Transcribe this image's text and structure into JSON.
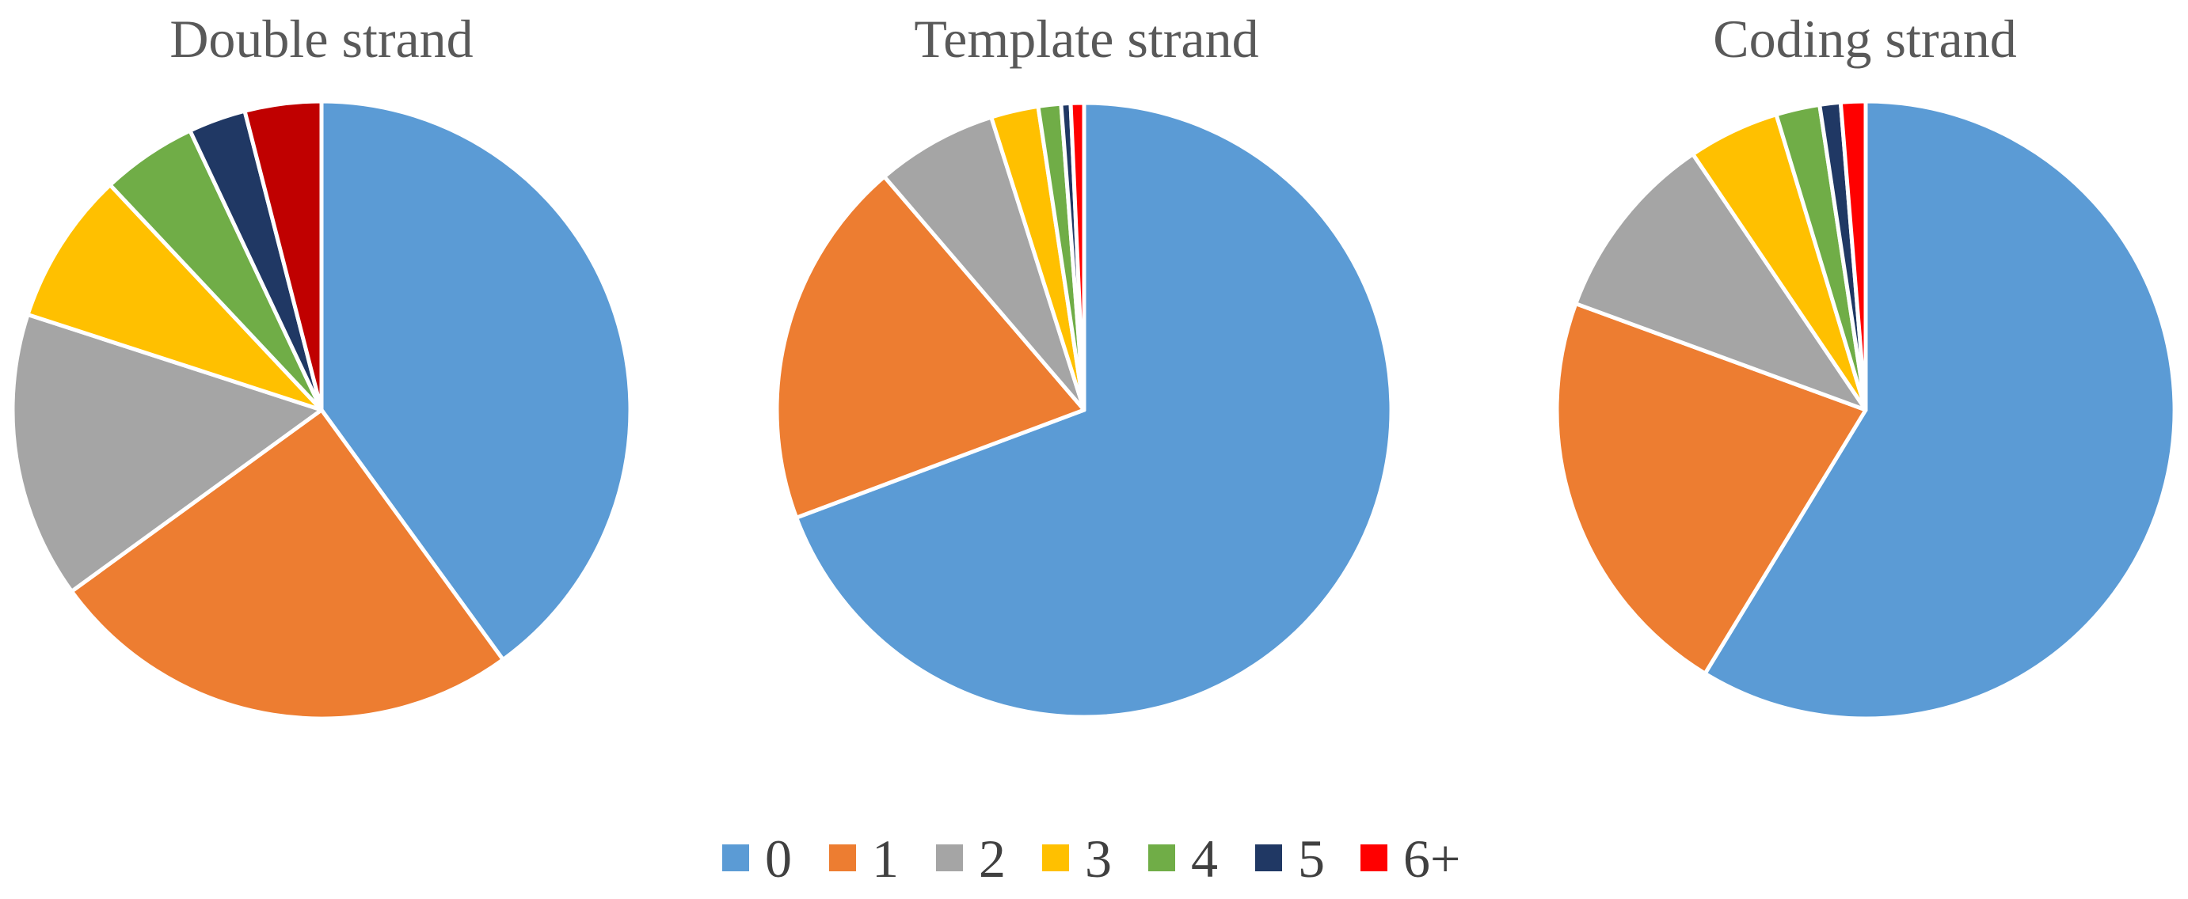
{
  "chart_data": [
    {
      "type": "pie",
      "title": "Double strand",
      "categories": [
        "0",
        "1",
        "2",
        "3",
        "4",
        "5",
        "6+"
      ],
      "values": [
        40,
        25,
        15,
        8,
        5,
        3,
        4
      ],
      "start": "12 o'clock, clockwise"
    },
    {
      "type": "pie",
      "title": "Template strand",
      "categories": [
        "0",
        "1",
        "2",
        "3",
        "4",
        "5",
        "6+"
      ],
      "values": [
        69.5,
        19.5,
        6.4,
        2.5,
        1.2,
        0.5,
        0.7
      ],
      "start": "12 o'clock, clockwise"
    },
    {
      "type": "pie",
      "title": "Coding strand",
      "categories": [
        "0",
        "1",
        "2",
        "3",
        "4",
        "5",
        "6+"
      ],
      "values": [
        59,
        22,
        10,
        4.8,
        2.3,
        1.1,
        1.3
      ],
      "start": "12 o'clock, clockwise"
    }
  ],
  "legend": {
    "placement": "bottom",
    "items": [
      {
        "label": "0",
        "color": "#5B9BD5"
      },
      {
        "label": "1",
        "color": "#ED7D31"
      },
      {
        "label": "2",
        "color": "#A5A5A5"
      },
      {
        "label": "3",
        "color": "#FFC000"
      },
      {
        "label": "4",
        "color": "#70AD47"
      },
      {
        "label": "5",
        "color": "#203864"
      },
      {
        "label": "6+",
        "color": "#FF0000"
      }
    ]
  },
  "slice_colors": {
    "Double strand": [
      "#5B9BD5",
      "#ED7D31",
      "#A5A5A5",
      "#FFC000",
      "#70AD47",
      "#203864",
      "#C00000"
    ],
    "Template strand": [
      "#5B9BD5",
      "#ED7D31",
      "#A5A5A5",
      "#FFC000",
      "#70AD47",
      "#203864",
      "#FF0000"
    ],
    "Coding strand": [
      "#5B9BD5",
      "#ED7D31",
      "#A5A5A5",
      "#FFC000",
      "#70AD47",
      "#203864",
      "#FF0000"
    ]
  }
}
